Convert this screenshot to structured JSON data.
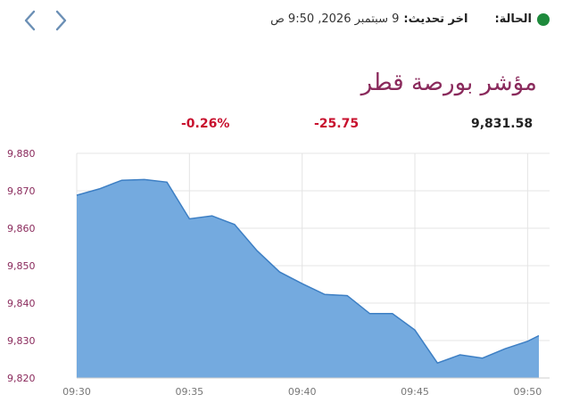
{
  "status": {
    "label": "الحالة:",
    "dot_color": "#1e8a3c",
    "updated_label": "اخر تحديث:",
    "updated_value": "9 سبتمبر 2026, 9:50 ص"
  },
  "nav": {
    "prev_icon": "chevron-left-icon",
    "next_icon": "chevron-right-icon",
    "color": "#6b8fb5"
  },
  "index": {
    "title": "مؤشر بورصة قطر",
    "value": "9,831.58",
    "change": "-25.75",
    "change_pct": "-0.26%",
    "change_color": "#c8102e"
  },
  "chart_data": {
    "type": "area",
    "x_ticks": [
      "09:30",
      "09:35",
      "09:40",
      "09:45",
      "09:50"
    ],
    "y_ticks": [
      9820,
      9830,
      9840,
      9850,
      9860,
      9870,
      9880
    ],
    "y_tick_labels": [
      "9,820",
      "9,830",
      "9,840",
      "9,850",
      "9,860",
      "9,870",
      "9,880"
    ],
    "ylim": [
      9820,
      9880
    ],
    "xlim": [
      "09:30",
      "09:51"
    ],
    "grid": true,
    "fill_color": "#74aadf",
    "line_color": "#3d7fc4",
    "series": [
      {
        "x": [
          "09:30",
          "09:31",
          "09:32",
          "09:33",
          "09:34",
          "09:35",
          "09:36",
          "09:37",
          "09:38",
          "09:39",
          "09:40",
          "09:41",
          "09:42",
          "09:43",
          "09:44",
          "09:45",
          "09:46",
          "09:47",
          "09:48",
          "09:49",
          "09:50",
          "09:50:30"
        ],
        "values": [
          9868.8,
          9870.5,
          9872.8,
          9873.0,
          9872.3,
          9862.5,
          9863.3,
          9861.0,
          9854.0,
          9848.3,
          9845.2,
          9842.3,
          9842.0,
          9837.2,
          9837.2,
          9832.8,
          9824.0,
          9826.2,
          9825.3,
          9827.8,
          9829.8,
          9831.3
        ]
      }
    ]
  }
}
